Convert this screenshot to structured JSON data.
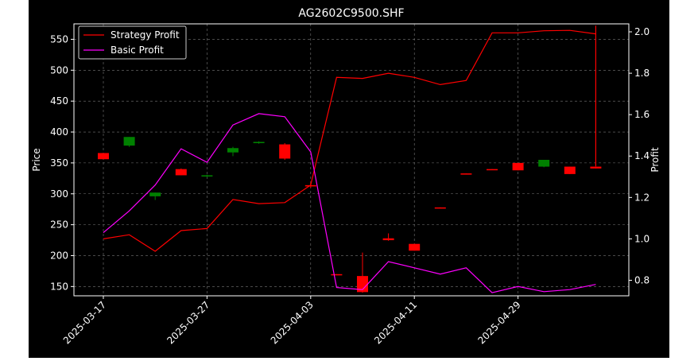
{
  "chart_data": {
    "type": "candlestick",
    "title": "AG2602C9500.SHF",
    "ylabel_left": "Price",
    "ylabel_right": "Profit",
    "ylim_left": [
      135,
      575
    ],
    "ylim_right": [
      0.725,
      2.0385
    ],
    "yticks_left": [
      150,
      200,
      250,
      300,
      350,
      400,
      450,
      500,
      550
    ],
    "yticks_right": [
      "0.8",
      "1.0",
      "1.2",
      "1.4",
      "1.6",
      "1.8",
      "2.0"
    ],
    "xtick_labels": [
      "2025-03-17",
      "2025-03-27",
      "2025-04-03",
      "2025-04-11",
      "2025-04-29"
    ],
    "xtick_positions": [
      0,
      4,
      8,
      12,
      16
    ],
    "legend_position": "upper left",
    "grid": true,
    "up_color": "#008000",
    "down_color": "#ff0000",
    "candles": [
      {
        "o": 366,
        "h": 366,
        "l": 356,
        "c": 356
      },
      {
        "o": 378,
        "h": 392,
        "l": 376,
        "c": 392
      },
      {
        "o": 296,
        "h": 302,
        "l": 290,
        "c": 302
      },
      {
        "o": 340,
        "h": 341,
        "l": 330,
        "c": 330
      },
      {
        "o": 328,
        "h": 331,
        "l": 327,
        "c": 330
      },
      {
        "o": 367,
        "h": 376,
        "l": 361,
        "c": 374
      },
      {
        "o": 382,
        "h": 385,
        "l": 381,
        "c": 384
      },
      {
        "o": 380,
        "h": 382,
        "l": 355,
        "c": 357
      },
      {
        "o": 314,
        "h": 318,
        "l": 310,
        "c": 312
      },
      {
        "o": 170,
        "h": 170,
        "l": 169,
        "c": 169
      },
      {
        "o": 167,
        "h": 205,
        "l": 140,
        "c": 141
      },
      {
        "o": 228,
        "h": 236,
        "l": 224,
        "c": 225
      },
      {
        "o": 219,
        "h": 219,
        "l": 208,
        "c": 208
      },
      {
        "o": 278,
        "h": 278,
        "l": 277,
        "c": 277
      },
      {
        "o": 333,
        "h": 333,
        "l": 332,
        "c": 332
      },
      {
        "o": 340,
        "h": 340,
        "l": 339,
        "c": 339
      },
      {
        "o": 350,
        "h": 350,
        "l": 338,
        "c": 338
      },
      {
        "o": 344,
        "h": 355,
        "l": 343,
        "c": 355
      },
      {
        "o": 344,
        "h": 344,
        "l": 332,
        "c": 332
      },
      {
        "o": 344,
        "h": 344,
        "l": 341,
        "c": 341
      }
    ],
    "series": [
      {
        "name": "Strategy Profit",
        "color": "#ff0000",
        "values": [
          1.0,
          1.02,
          0.94,
          1.04,
          1.05,
          1.19,
          1.17,
          1.175,
          1.26,
          1.78,
          1.775,
          1.8,
          1.78,
          1.745,
          1.765,
          1.995,
          1.995,
          2.005,
          2.007,
          1.99
        ]
      },
      {
        "name": "Basic Profit",
        "color": "#ff00ff",
        "values": [
          1.03,
          1.135,
          1.26,
          1.435,
          1.37,
          1.55,
          1.605,
          1.59,
          1.42,
          0.765,
          0.755,
          0.89,
          0.86,
          0.83,
          0.86,
          0.74,
          0.77,
          0.745,
          0.755,
          0.78
        ]
      }
    ],
    "final_spike": {
      "from": 1.35,
      "to": 2.03
    }
  }
}
